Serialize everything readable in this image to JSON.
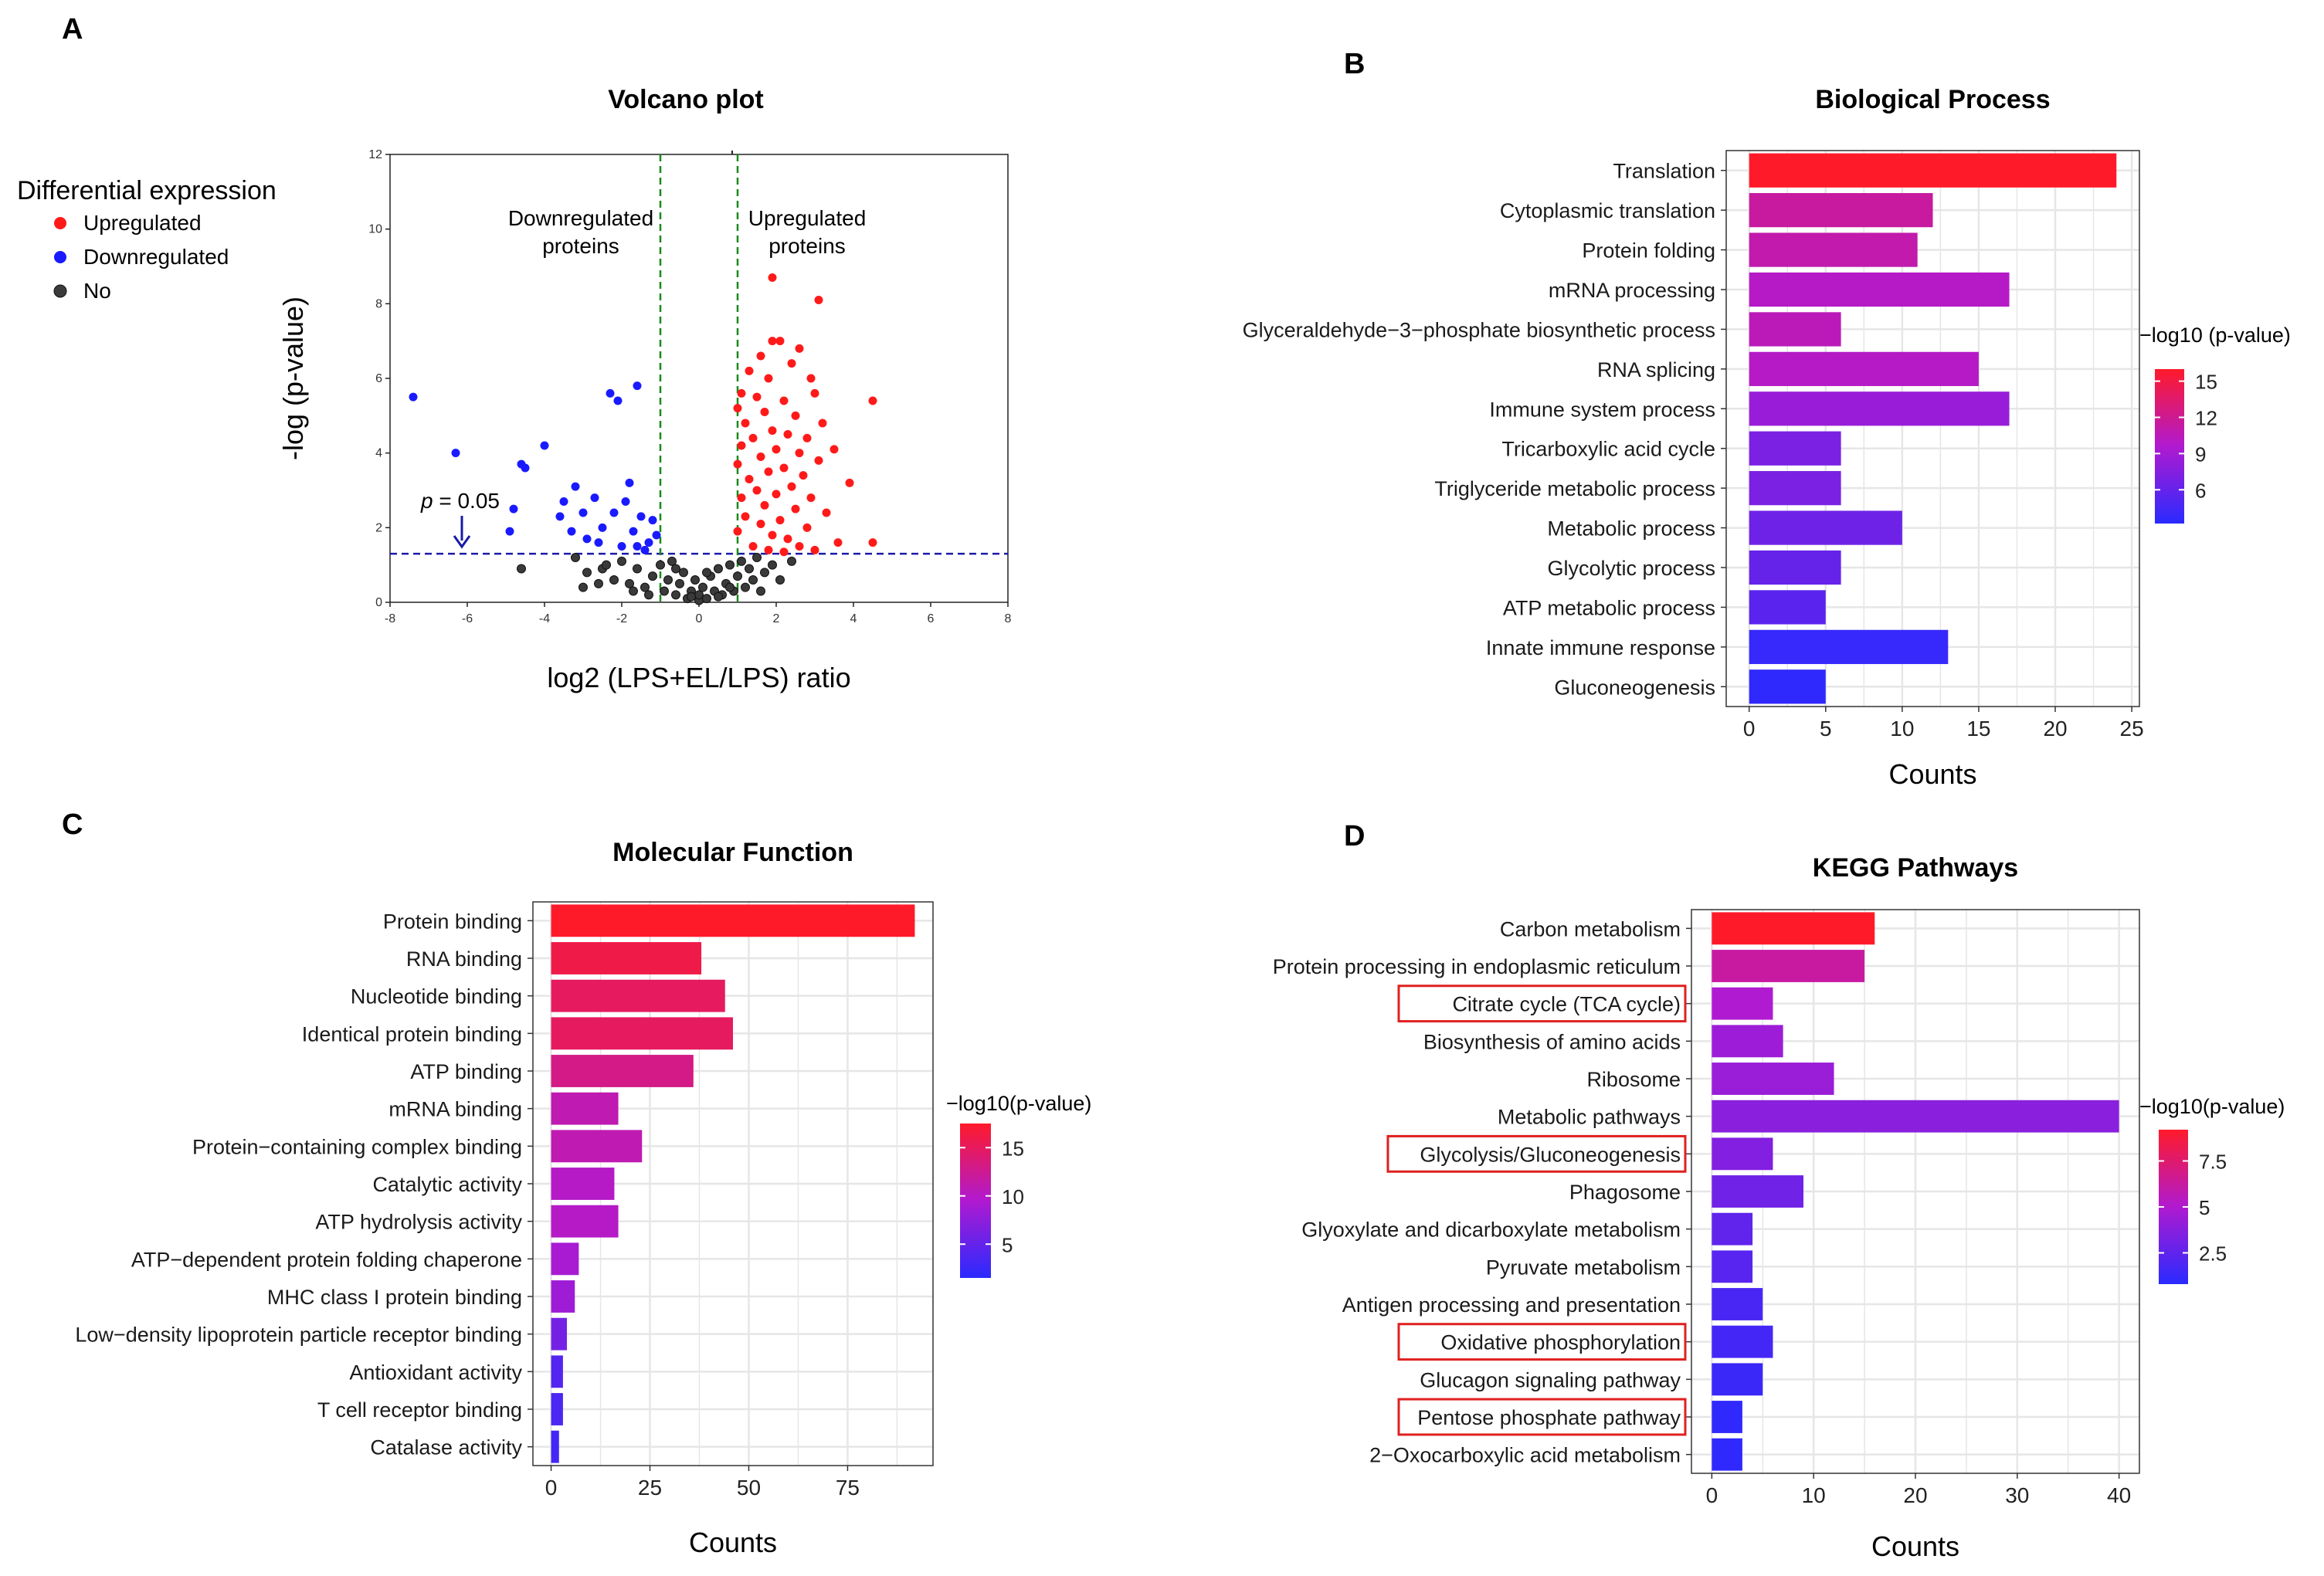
{
  "colors": {
    "up": "#ff1a1a",
    "down": "#1a1aff",
    "no": "#3a3a3a",
    "threshold_h": "#1a1aaa",
    "threshold_v": "#1a8a1a",
    "grid": "#e6e6e6",
    "gradient_low": "#2a2aff",
    "gradient_high": "#ff1a2a",
    "highlight_box": "#e02020"
  },
  "chart_data": [
    {
      "id": "A",
      "type": "scatter",
      "panel_label": "A",
      "title": "Volcano plot",
      "xlabel": "log2 (LPS+EL/LPS) ratio",
      "ylabel": "-log (p-value)",
      "xlim": [
        -8,
        8
      ],
      "ylim": [
        0,
        12
      ],
      "xticks": [
        -8,
        -6,
        -4,
        -2,
        0,
        2,
        4,
        6,
        8
      ],
      "yticks": [
        0,
        2,
        4,
        6,
        8,
        10,
        12
      ],
      "threshold_y": 1.3,
      "threshold_x": [
        -1,
        1
      ],
      "threshold_label_prefix": "p",
      "threshold_label_suffix": " = 0.05",
      "annotation_down": [
        "Downregulated",
        "proteins"
      ],
      "annotation_up": [
        "Upregulated",
        "proteins"
      ],
      "legend": {
        "title": "Differential expression",
        "entries": [
          "Upregulated",
          "Downregulated",
          "No"
        ]
      },
      "series": [
        {
          "name": "Upregulated",
          "points": [
            [
              1.9,
              8.7
            ],
            [
              3.1,
              8.1
            ],
            [
              1.9,
              7.0
            ],
            [
              2.1,
              7.0
            ],
            [
              2.6,
              6.8
            ],
            [
              1.6,
              6.6
            ],
            [
              2.4,
              6.4
            ],
            [
              1.3,
              6.2
            ],
            [
              1.8,
              6.0
            ],
            [
              2.9,
              6.0
            ],
            [
              3.0,
              5.6
            ],
            [
              1.1,
              5.6
            ],
            [
              1.5,
              5.5
            ],
            [
              2.2,
              5.4
            ],
            [
              4.5,
              5.4
            ],
            [
              1.0,
              5.2
            ],
            [
              1.7,
              5.1
            ],
            [
              2.5,
              5.0
            ],
            [
              3.2,
              4.8
            ],
            [
              1.2,
              4.8
            ],
            [
              1.9,
              4.6
            ],
            [
              2.3,
              4.5
            ],
            [
              2.8,
              4.4
            ],
            [
              1.4,
              4.4
            ],
            [
              1.1,
              4.2
            ],
            [
              2.0,
              4.1
            ],
            [
              3.5,
              4.1
            ],
            [
              2.6,
              4.0
            ],
            [
              1.6,
              3.9
            ],
            [
              3.1,
              3.8
            ],
            [
              1.0,
              3.7
            ],
            [
              2.2,
              3.6
            ],
            [
              1.8,
              3.5
            ],
            [
              2.7,
              3.4
            ],
            [
              1.3,
              3.3
            ],
            [
              3.9,
              3.2
            ],
            [
              2.4,
              3.1
            ],
            [
              1.5,
              3.0
            ],
            [
              2.0,
              2.9
            ],
            [
              1.1,
              2.8
            ],
            [
              2.9,
              2.8
            ],
            [
              1.7,
              2.6
            ],
            [
              2.5,
              2.5
            ],
            [
              3.3,
              2.4
            ],
            [
              1.2,
              2.3
            ],
            [
              2.1,
              2.2
            ],
            [
              1.6,
              2.1
            ],
            [
              2.8,
              2.0
            ],
            [
              1.0,
              1.9
            ],
            [
              1.9,
              1.8
            ],
            [
              2.3,
              1.7
            ],
            [
              3.6,
              1.6
            ],
            [
              1.4,
              1.5
            ],
            [
              2.6,
              1.5
            ],
            [
              4.5,
              1.6
            ],
            [
              1.8,
              1.4
            ],
            [
              2.2,
              1.35
            ],
            [
              3.0,
              1.4
            ]
          ]
        },
        {
          "name": "Downregulated",
          "points": [
            [
              -7.4,
              5.5
            ],
            [
              -6.3,
              4.0
            ],
            [
              -4.6,
              3.7
            ],
            [
              -4.5,
              3.6
            ],
            [
              -4.0,
              4.2
            ],
            [
              -2.3,
              5.6
            ],
            [
              -2.1,
              5.4
            ],
            [
              -1.6,
              5.8
            ],
            [
              -4.8,
              2.5
            ],
            [
              -4.9,
              1.9
            ],
            [
              -3.2,
              3.1
            ],
            [
              -3.5,
              2.7
            ],
            [
              -3.0,
              2.4
            ],
            [
              -2.7,
              2.8
            ],
            [
              -2.5,
              2.0
            ],
            [
              -2.2,
              2.4
            ],
            [
              -1.9,
              2.7
            ],
            [
              -1.8,
              3.2
            ],
            [
              -1.5,
              2.3
            ],
            [
              -1.7,
              1.9
            ],
            [
              -1.3,
              1.6
            ],
            [
              -1.2,
              2.2
            ],
            [
              -2.9,
              1.7
            ],
            [
              -3.6,
              2.3
            ],
            [
              -2.0,
              1.5
            ],
            [
              -1.4,
              1.4
            ],
            [
              -1.1,
              1.8
            ],
            [
              -3.3,
              1.9
            ],
            [
              -2.6,
              1.6
            ],
            [
              -1.6,
              1.5
            ]
          ]
        },
        {
          "name": "No",
          "points": [
            [
              -4.6,
              0.9
            ],
            [
              -3.2,
              1.2
            ],
            [
              -2.9,
              0.8
            ],
            [
              -2.5,
              0.9
            ],
            [
              -2.2,
              0.6
            ],
            [
              -2.0,
              1.1
            ],
            [
              -1.8,
              0.5
            ],
            [
              -1.6,
              0.9
            ],
            [
              -1.4,
              0.4
            ],
            [
              -1.2,
              0.7
            ],
            [
              -1.0,
              1.0
            ],
            [
              -0.9,
              0.3
            ],
            [
              -0.8,
              0.6
            ],
            [
              -0.7,
              1.1
            ],
            [
              -0.6,
              0.2
            ],
            [
              -0.5,
              0.5
            ],
            [
              -0.4,
              0.8
            ],
            [
              -0.3,
              0.1
            ],
            [
              -0.2,
              0.3
            ],
            [
              -0.1,
              0.6
            ],
            [
              0.0,
              0.05
            ],
            [
              0.0,
              0.2
            ],
            [
              0.1,
              0.4
            ],
            [
              0.2,
              0.1
            ],
            [
              0.3,
              0.7
            ],
            [
              0.4,
              0.3
            ],
            [
              0.5,
              0.9
            ],
            [
              0.6,
              0.2
            ],
            [
              0.7,
              0.5
            ],
            [
              0.8,
              1.0
            ],
            [
              0.9,
              0.3
            ],
            [
              1.0,
              0.7
            ],
            [
              1.1,
              1.1
            ],
            [
              1.2,
              0.4
            ],
            [
              1.3,
              0.9
            ],
            [
              1.4,
              0.6
            ],
            [
              1.5,
              1.2
            ],
            [
              1.7,
              0.8
            ],
            [
              1.9,
              1.0
            ],
            [
              2.1,
              0.6
            ],
            [
              2.4,
              1.1
            ],
            [
              -0.6,
              0.9
            ],
            [
              -1.3,
              0.2
            ],
            [
              -2.6,
              0.5
            ],
            [
              0.2,
              0.8
            ],
            [
              -0.2,
              0.15
            ],
            [
              0.5,
              0.15
            ],
            [
              1.6,
              0.3
            ],
            [
              -1.7,
              0.3
            ],
            [
              -2.4,
              1.0
            ],
            [
              -3.0,
              0.4
            ],
            [
              0.8,
              0.4
            ]
          ]
        }
      ]
    },
    {
      "id": "B",
      "type": "bar",
      "orientation": "horizontal",
      "panel_label": "B",
      "title": "Biological Process",
      "xlabel": "Counts",
      "xlim": [
        -1.5,
        25.5
      ],
      "xticks": [
        0,
        5,
        10,
        15,
        20,
        25
      ],
      "categories": [
        "Translation",
        "Cytoplasmic translation",
        "Protein folding",
        "mRNA processing",
        "Glyceraldehyde−3−phosphate biosynthetic process",
        "RNA splicing",
        "Immune system process",
        "Tricarboxylic acid cycle",
        "Triglyceride metabolic process",
        "Metabolic process",
        "Glycolytic process",
        "ATP metabolic process",
        "Innate immune response",
        "Gluconeogenesis"
      ],
      "values": [
        24,
        12,
        11,
        17,
        6,
        15,
        17,
        6,
        6,
        10,
        6,
        5,
        13,
        5
      ],
      "color_values": [
        16,
        11.5,
        11,
        10,
        10.5,
        10,
        8.5,
        7,
        7,
        6.5,
        6,
        5.5,
        3.8,
        3.5
      ],
      "legend_title": "−log10 (p-value)",
      "color_range": [
        3.2,
        16
      ],
      "legend_ticks": [
        15,
        12,
        9,
        6
      ],
      "highlighted": []
    },
    {
      "id": "C",
      "type": "bar",
      "orientation": "horizontal",
      "panel_label": "C",
      "title": "Molecular Function",
      "xlabel": "Counts",
      "xlim": [
        -4.6,
        96.6
      ],
      "xticks": [
        0,
        25,
        50,
        75
      ],
      "categories": [
        "Protein binding",
        "RNA binding",
        "Nucleotide binding",
        "Identical protein binding",
        "ATP binding",
        "mRNA binding",
        "Protein−containing complex binding",
        "Catalytic activity",
        "ATP hydrolysis activity",
        "ATP−dependent protein folding chaperone",
        "MHC class I protein binding",
        "Low−density lipoprotein particle receptor binding",
        "Antioxidant activity",
        "T cell receptor binding",
        "Catalase activity"
      ],
      "values": [
        92,
        38,
        44,
        46,
        36,
        17,
        23,
        16,
        17,
        7,
        6,
        4,
        3,
        3,
        2
      ],
      "color_values": [
        17.5,
        16,
        15,
        15,
        13,
        11,
        11,
        10,
        10,
        9,
        8.5,
        6,
        4,
        3.5,
        3
      ],
      "legend_title": "−log10(p-value)",
      "color_range": [
        1.5,
        17.5
      ],
      "legend_ticks": [
        15,
        10,
        5
      ],
      "highlighted": []
    },
    {
      "id": "D",
      "type": "bar",
      "orientation": "horizontal",
      "panel_label": "D",
      "title": "KEGG Pathways",
      "xlabel": "Counts",
      "xlim": [
        -2,
        42
      ],
      "xticks": [
        0,
        10,
        20,
        30,
        40
      ],
      "categories": [
        "Carbon metabolism",
        "Protein processing in endoplasmic reticulum",
        "Citrate cycle (TCA cycle)",
        "Biosynthesis of amino acids",
        "Ribosome",
        "Metabolic pathways",
        "Glycolysis/Gluconeogenesis",
        "Phagosome",
        "Glyoxylate and dicarboxylate metabolism",
        "Pyruvate metabolism",
        "Antigen processing and presentation",
        "Oxidative phosphorylation",
        "Glucagon signaling pathway",
        "Pentose phosphate pathway",
        "2−Oxocarboxylic acid metabolism"
      ],
      "values": [
        16,
        15,
        6,
        7,
        12,
        40,
        6,
        9,
        4,
        4,
        5,
        6,
        5,
        3,
        3
      ],
      "color_values": [
        9.2,
        6.2,
        5.0,
        4.4,
        4.3,
        3.8,
        3.6,
        3.0,
        2.5,
        2.2,
        1.8,
        1.6,
        1.3,
        1.0,
        1.0
      ],
      "legend_title": "−log10(p-value)",
      "color_range": [
        0.8,
        9.2
      ],
      "legend_ticks": [
        7.5,
        5.0,
        2.5
      ],
      "highlighted": [
        "Citrate cycle (TCA cycle)",
        "Glycolysis/Gluconeogenesis",
        "Oxidative phosphorylation",
        "Pentose phosphate pathway"
      ]
    }
  ]
}
